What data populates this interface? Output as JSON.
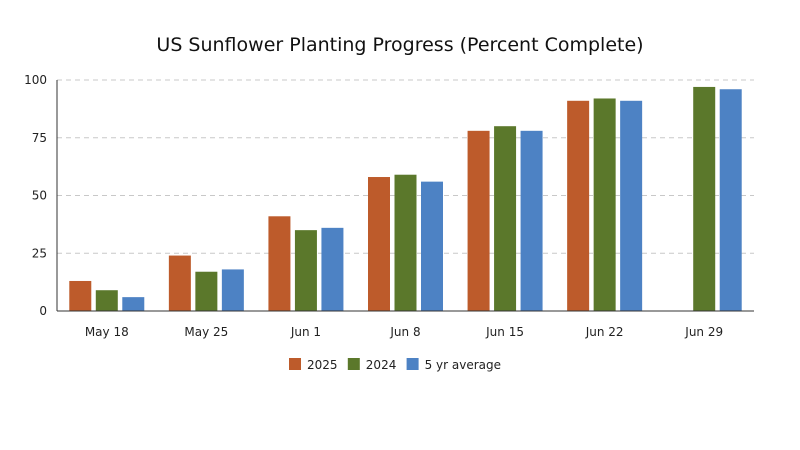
{
  "chart_data": {
    "type": "bar",
    "title": "US Sunflower Planting Progress (Percent Complete)",
    "xlabel": "",
    "ylabel": "",
    "categories": [
      "May 18",
      "May 25",
      "Jun 1",
      "Jun 8",
      "Jun 15",
      "Jun 22",
      "Jun 29"
    ],
    "series": [
      {
        "name": "2025",
        "color": "#bd5b2b",
        "values": [
          13,
          24,
          41,
          58,
          78,
          91,
          null
        ]
      },
      {
        "name": "2024",
        "color": "#5b782b",
        "values": [
          9,
          17,
          35,
          59,
          80,
          92,
          97
        ]
      },
      {
        "name": "5 yr average",
        "color": "#4d82c4",
        "values": [
          6,
          18,
          36,
          56,
          78,
          91,
          96
        ]
      }
    ],
    "ylim": [
      0,
      100
    ],
    "yticks": [
      0,
      25,
      50,
      75,
      100
    ],
    "grid": true,
    "legend": "bottom"
  }
}
